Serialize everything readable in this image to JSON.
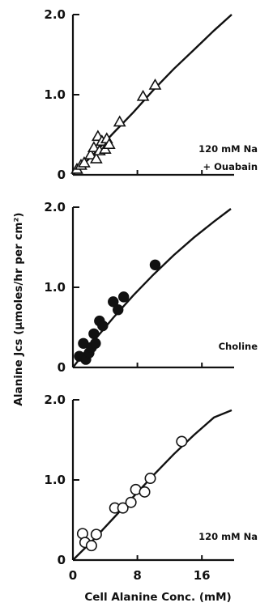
{
  "chart_data": [
    {
      "type": "scatter",
      "panel": "top",
      "annotation": [
        "120 mM Na",
        "+ Ouabain"
      ],
      "marker": "open-triangle",
      "xlim": [
        0,
        20
      ],
      "ylim": [
        0,
        2.0
      ],
      "yticks": [
        0,
        1.0,
        2.0
      ],
      "ytick_labels": [
        "0",
        "1.0",
        "2.0"
      ],
      "points": [
        {
          "x": 0.5,
          "y": 0.07
        },
        {
          "x": 1.0,
          "y": 0.12
        },
        {
          "x": 1.4,
          "y": 0.15
        },
        {
          "x": 2.2,
          "y": 0.25
        },
        {
          "x": 2.6,
          "y": 0.34
        },
        {
          "x": 2.9,
          "y": 0.2
        },
        {
          "x": 3.1,
          "y": 0.48
        },
        {
          "x": 3.3,
          "y": 0.3
        },
        {
          "x": 3.6,
          "y": 0.42
        },
        {
          "x": 4.0,
          "y": 0.32
        },
        {
          "x": 4.2,
          "y": 0.45
        },
        {
          "x": 4.5,
          "y": 0.38
        },
        {
          "x": 5.8,
          "y": 0.66
        },
        {
          "x": 8.7,
          "y": 0.98
        },
        {
          "x": 10.2,
          "y": 1.12
        }
      ],
      "curve": [
        [
          0,
          0
        ],
        [
          2.5,
          0.25
        ],
        [
          5,
          0.52
        ],
        [
          7.5,
          0.78
        ],
        [
          10,
          1.06
        ],
        [
          12.5,
          1.32
        ],
        [
          15,
          1.56
        ],
        [
          17.5,
          1.8
        ],
        [
          19.7,
          2.0
        ]
      ]
    },
    {
      "type": "scatter",
      "panel": "middle",
      "annotation": [
        "Choline"
      ],
      "marker": "filled-circle",
      "xlim": [
        0,
        20
      ],
      "ylim": [
        0,
        2.0
      ],
      "yticks": [
        0,
        1.0,
        2.0
      ],
      "ytick_labels": [
        "0",
        "1.0",
        "2.0"
      ],
      "points": [
        {
          "x": 0.8,
          "y": 0.14
        },
        {
          "x": 1.3,
          "y": 0.3
        },
        {
          "x": 1.6,
          "y": 0.1
        },
        {
          "x": 2.0,
          "y": 0.18
        },
        {
          "x": 2.3,
          "y": 0.25
        },
        {
          "x": 2.6,
          "y": 0.42
        },
        {
          "x": 2.8,
          "y": 0.3
        },
        {
          "x": 3.3,
          "y": 0.58
        },
        {
          "x": 3.7,
          "y": 0.52
        },
        {
          "x": 5.0,
          "y": 0.82
        },
        {
          "x": 5.6,
          "y": 0.72
        },
        {
          "x": 6.3,
          "y": 0.88
        },
        {
          "x": 10.2,
          "y": 1.28
        }
      ],
      "curve": [
        [
          0,
          0
        ],
        [
          2.5,
          0.32
        ],
        [
          5,
          0.62
        ],
        [
          7.5,
          0.9
        ],
        [
          10,
          1.16
        ],
        [
          12.5,
          1.4
        ],
        [
          15,
          1.62
        ],
        [
          17.5,
          1.82
        ],
        [
          19.6,
          1.98
        ]
      ]
    },
    {
      "type": "scatter",
      "panel": "bottom",
      "annotation": [
        "120 mM Na"
      ],
      "marker": "open-circle",
      "xlim": [
        0,
        20
      ],
      "ylim": [
        0,
        2.0
      ],
      "yticks": [
        0,
        1.0,
        2.0
      ],
      "ytick_labels": [
        "0",
        "1.0",
        "2.0"
      ],
      "xticks": [
        0,
        8,
        16
      ],
      "xtick_labels": [
        "0",
        "8",
        "16"
      ],
      "xlabel": "Cell Alanine Conc. (mM)",
      "points": [
        {
          "x": 1.2,
          "y": 0.33
        },
        {
          "x": 1.5,
          "y": 0.22
        },
        {
          "x": 2.3,
          "y": 0.18
        },
        {
          "x": 2.9,
          "y": 0.32
        },
        {
          "x": 5.2,
          "y": 0.65
        },
        {
          "x": 6.2,
          "y": 0.65
        },
        {
          "x": 7.2,
          "y": 0.72
        },
        {
          "x": 7.8,
          "y": 0.88
        },
        {
          "x": 8.9,
          "y": 0.85
        },
        {
          "x": 9.6,
          "y": 1.02
        },
        {
          "x": 13.5,
          "y": 1.48
        }
      ],
      "curve": [
        [
          0,
          0
        ],
        [
          2.5,
          0.25
        ],
        [
          5,
          0.52
        ],
        [
          7.5,
          0.79
        ],
        [
          10,
          1.06
        ],
        [
          12.5,
          1.32
        ],
        [
          15,
          1.56
        ],
        [
          17.5,
          1.78
        ],
        [
          19.7,
          1.87
        ]
      ]
    }
  ],
  "ylabel": "Alanine Jcs (μmoles/hr per cm²)"
}
